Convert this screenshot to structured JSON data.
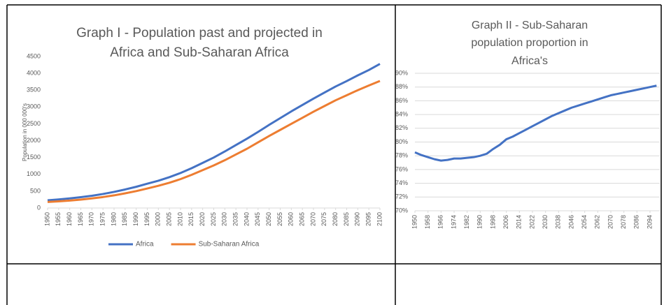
{
  "chart_data": [
    {
      "type": "line",
      "title": [
        "Graph I - Population past and projected in",
        "Africa and Sub-Saharan Africa"
      ],
      "y_label": "Population in 000 000's",
      "x": [
        1950,
        1955,
        1960,
        1965,
        1970,
        1975,
        1980,
        1985,
        1990,
        1995,
        2000,
        2005,
        2010,
        2015,
        2020,
        2025,
        2030,
        2035,
        2040,
        2045,
        2050,
        2055,
        2060,
        2065,
        2070,
        2075,
        2080,
        2085,
        2090,
        2095,
        2100
      ],
      "series": [
        {
          "name": "Africa",
          "color": "#4472c4",
          "values": [
            228,
            255,
            285,
            322,
            363,
            416,
            478,
            550,
            630,
            721,
            811,
            916,
            1039,
            1182,
            1340,
            1500,
            1680,
            1870,
            2060,
            2260,
            2470,
            2670,
            2870,
            3060,
            3250,
            3430,
            3610,
            3770,
            3940,
            4100,
            4280
          ]
        },
        {
          "name": "Sub-Saharan Africa",
          "color": "#ed7d31",
          "values": [
            179,
            198,
            221,
            250,
            285,
            325,
            375,
            435,
            502,
            580,
            660,
            750,
            858,
            985,
            1125,
            1265,
            1420,
            1590,
            1760,
            1950,
            2140,
            2320,
            2500,
            2680,
            2860,
            3030,
            3200,
            3350,
            3500,
            3640,
            3775
          ]
        }
      ],
      "xlim": [
        1950,
        2100
      ],
      "xticks": [
        1950,
        1955,
        1960,
        1965,
        1970,
        1975,
        1980,
        1985,
        1990,
        1995,
        2000,
        2005,
        2010,
        2015,
        2020,
        2025,
        2030,
        2035,
        2040,
        2045,
        2050,
        2055,
        2060,
        2065,
        2070,
        2075,
        2080,
        2085,
        2090,
        2095,
        2100
      ],
      "ylim": [
        0,
        4500
      ],
      "yticks": [
        0,
        500,
        1000,
        1500,
        2000,
        2500,
        3000,
        3500,
        4000,
        4500
      ],
      "grid": false,
      "legend": "bottom"
    },
    {
      "type": "line",
      "title": [
        "Graph II - Sub-Saharan",
        "population proportion in",
        "Africa's"
      ],
      "x": [
        1950,
        1954,
        1958,
        1962,
        1966,
        1970,
        1974,
        1978,
        1982,
        1986,
        1990,
        1994,
        1998,
        2002,
        2006,
        2010,
        2014,
        2018,
        2022,
        2026,
        2030,
        2034,
        2038,
        2042,
        2046,
        2050,
        2054,
        2058,
        2062,
        2066,
        2070,
        2074,
        2078,
        2082,
        2086,
        2090,
        2094,
        2098
      ],
      "series": [
        {
          "color": "#4472c4",
          "values": [
            78.5,
            78.1,
            77.8,
            77.5,
            77.3,
            77.4,
            77.6,
            77.6,
            77.7,
            77.8,
            78.0,
            78.3,
            79.0,
            79.6,
            80.4,
            80.8,
            81.3,
            81.8,
            82.3,
            82.8,
            83.3,
            83.8,
            84.2,
            84.6,
            85.0,
            85.3,
            85.6,
            85.9,
            86.2,
            86.5,
            86.8,
            87.0,
            87.2,
            87.4,
            87.6,
            87.8,
            88.0,
            88.2
          ]
        }
      ],
      "xlim": [
        1950,
        2100
      ],
      "xticks": [
        1950,
        1958,
        1966,
        1974,
        1982,
        1990,
        1998,
        2006,
        2014,
        2022,
        2030,
        2038,
        2046,
        2054,
        2062,
        2070,
        2078,
        2086,
        2094
      ],
      "ylim": [
        70,
        90
      ],
      "yticks": [
        {
          "value": 70,
          "label": "70%"
        },
        {
          "value": 72,
          "label": "72%"
        },
        {
          "value": 74,
          "label": "74%"
        },
        {
          "value": 76,
          "label": "76%"
        },
        {
          "value": 78,
          "label": "78%"
        },
        {
          "value": 80,
          "label": "80%"
        },
        {
          "value": 82,
          "label": "82%"
        },
        {
          "value": 84,
          "label": "84%"
        },
        {
          "value": 86,
          "label": "86%"
        },
        {
          "value": 88,
          "label": "88%"
        },
        {
          "value": 90,
          "label": "90%"
        }
      ],
      "grid": true
    }
  ]
}
